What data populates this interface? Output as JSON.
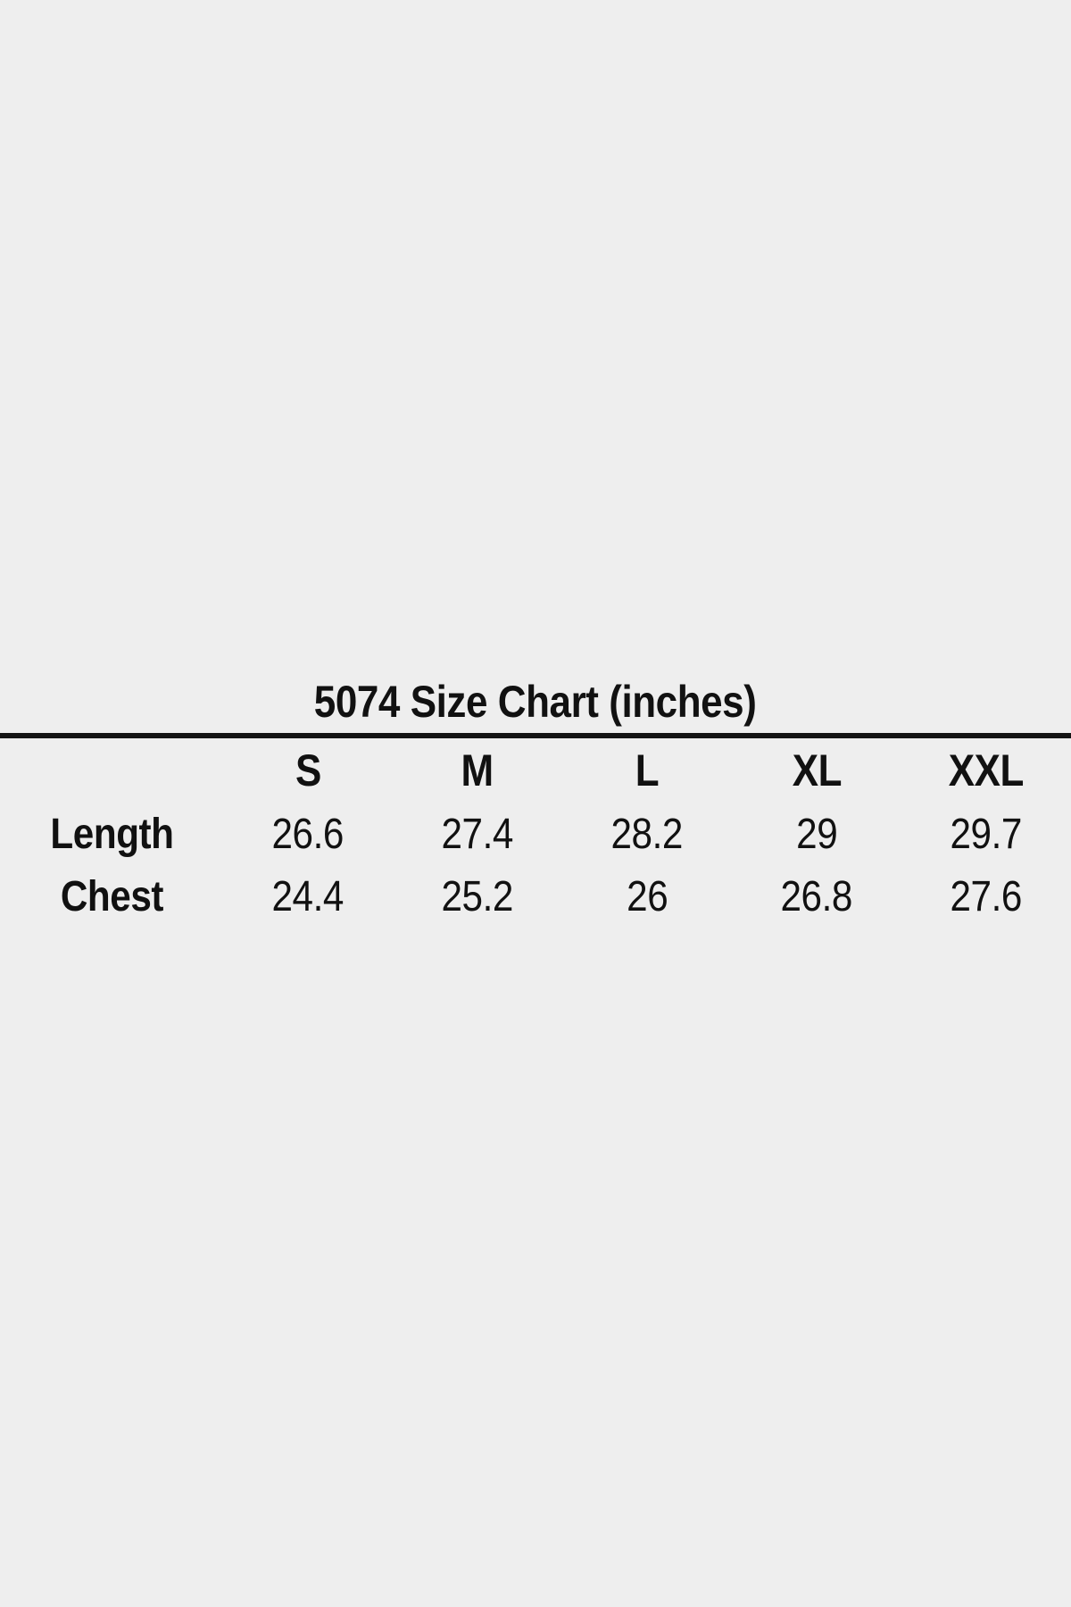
{
  "theme": {
    "bg": "#eeeeee",
    "ink": "#111111",
    "rule": "#141414"
  },
  "chart_data": {
    "type": "table",
    "title": "5074 Size Chart (inches)",
    "columns": [
      "",
      "S",
      "M",
      "L",
      "XL",
      "XXL"
    ],
    "rows": [
      {
        "label": "Length",
        "values": [
          "26.6",
          "27.4",
          "28.2",
          "29",
          "29.7"
        ]
      },
      {
        "label": "Chest",
        "values": [
          "24.4",
          "25.2",
          "26",
          "26.8",
          "27.6"
        ]
      }
    ],
    "layout": {
      "title_centered": true,
      "divider_under_title": true,
      "grid": "none"
    }
  }
}
